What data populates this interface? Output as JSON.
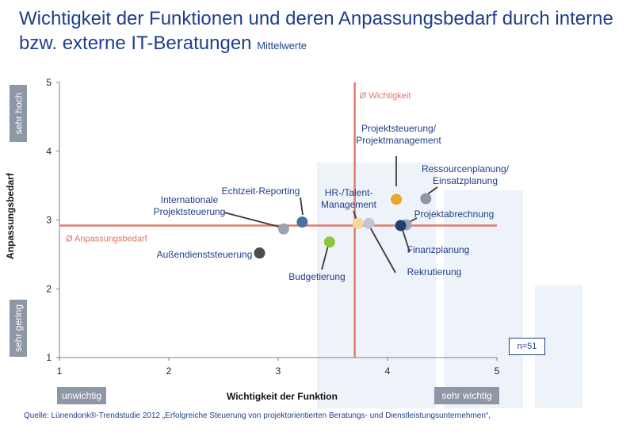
{
  "title": "Wichtigkeit der Funktionen und deren Anpassungsbedarf durch interne bzw. externe IT-Beratungen",
  "subtitle": "Mittelwerte",
  "side_labels": {
    "y_high": "sehr hoch",
    "y_low": "sehr gering",
    "x_low": "unwichtig",
    "x_high": "sehr wichtig"
  },
  "sample_note": "n=51",
  "source": "Quelle: Lünendonk®-Trendstudie 2012 „Erfolgreiche Steuerung von projektorientierten Beratungs- und Dienstleistungsunternehmen“,",
  "chart_data": {
    "type": "scatter",
    "xlabel": "Wichtigkeit der Funktion",
    "ylabel": "Anpassungsbedarf",
    "xlim": [
      1,
      5
    ],
    "ylim": [
      1,
      5
    ],
    "xticks": [
      "1",
      "2",
      "3",
      "4",
      "5"
    ],
    "yticks": [
      "1",
      "2",
      "3",
      "4",
      "5"
    ],
    "grid": false,
    "reference_lines": [
      {
        "axis": "x",
        "value": 3.7,
        "label": "Ø Wichtigkeit"
      },
      {
        "axis": "y",
        "value": 2.92,
        "label": "Ø Anpassungsbedarf"
      }
    ],
    "points": [
      {
        "label": "Projektsteuerung/\nProjektmanagement",
        "x": 4.08,
        "y": 3.3,
        "color": "#e8a82a"
      },
      {
        "label": "Ressourcenplanung/\nEinsatzplanung",
        "x": 4.35,
        "y": 3.31,
        "color": "#8e97a6"
      },
      {
        "label": "Projektabrechnung",
        "x": 4.17,
        "y": 2.93,
        "color": "#9aa4b5"
      },
      {
        "label": "Finanzplanung",
        "x": 4.12,
        "y": 2.92,
        "color": "#1f3f6e"
      },
      {
        "label": "Rekrutierung",
        "x": 3.83,
        "y": 2.95,
        "color": "#bfc6d1"
      },
      {
        "label": "HR-/Talent-\nManagement",
        "x": 3.73,
        "y": 2.95,
        "color": "#f5d89a"
      },
      {
        "label": "Echtzeit-Reporting",
        "x": 3.22,
        "y": 2.97,
        "color": "#4a6fa5"
      },
      {
        "label": "Internationale\nProjektsteuerung",
        "x": 3.05,
        "y": 2.87,
        "color": "#9aa4b5"
      },
      {
        "label": "Budgetierung",
        "x": 3.47,
        "y": 2.68,
        "color": "#8dc63f"
      },
      {
        "label": "Außendienststeuerung",
        "x": 2.83,
        "y": 2.52,
        "color": "#4d4d4d"
      }
    ]
  },
  "colors": {
    "title": "#1f3f8a",
    "reference_line": "#e07b6a",
    "reference_label": "#d9776a",
    "axis": "#808080",
    "point_label": "#1f3f8a",
    "side_box": "#8e97a6",
    "watermark": "#eef3fa"
  }
}
